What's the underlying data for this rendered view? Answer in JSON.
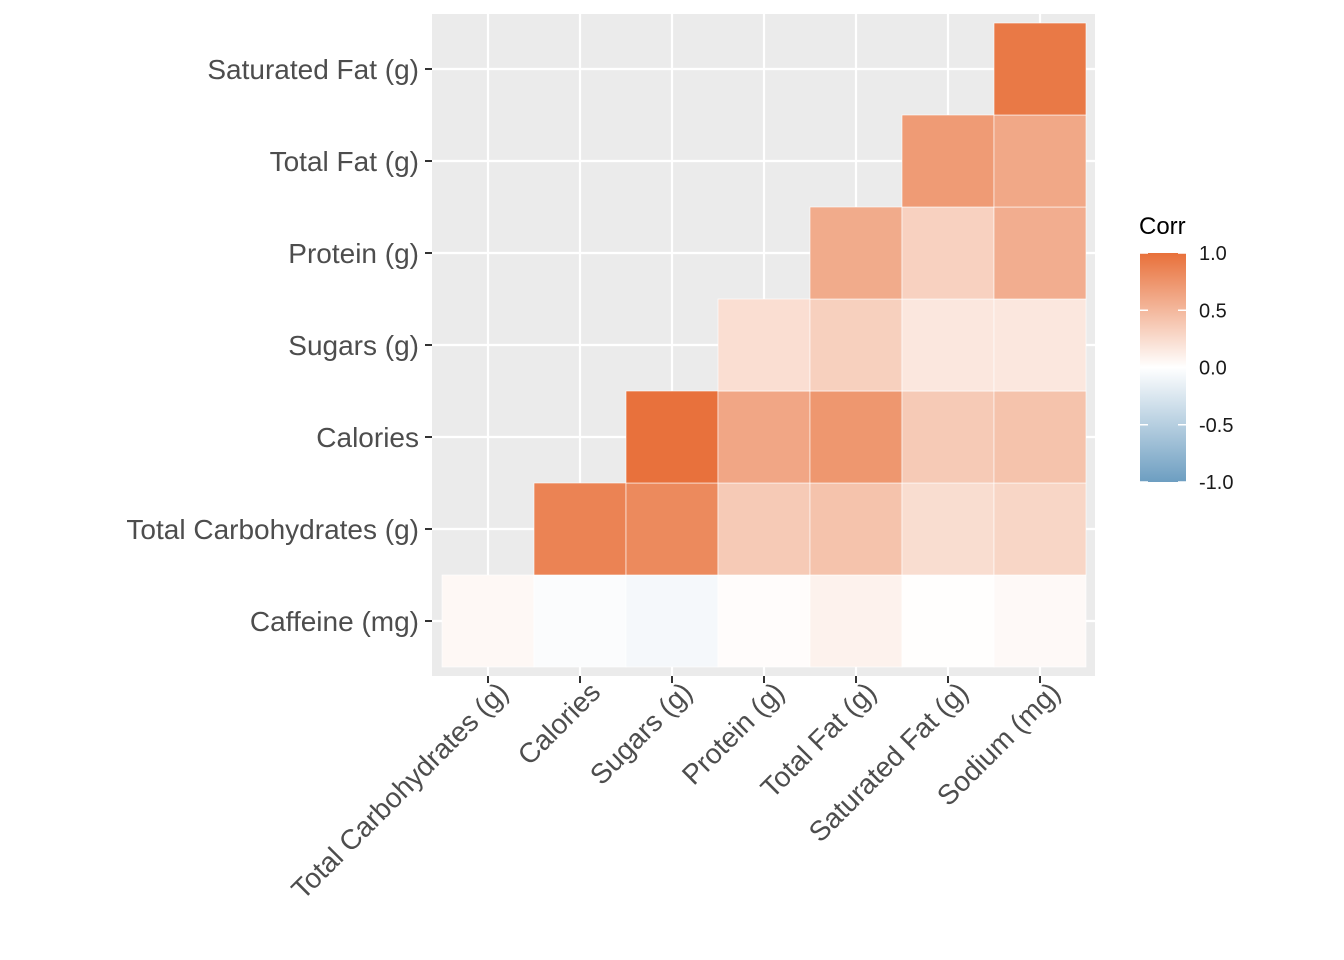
{
  "chart_data": {
    "type": "heatmap",
    "x_categories": [
      "Total Carbohydrates (g)",
      "Calories",
      "Sugars (g)",
      "Protein (g)",
      "Total Fat (g)",
      "Saturated Fat (g)",
      "Sodium (mg)"
    ],
    "y_categories": [
      "Caffeine (mg)",
      "Total Carbohydrates (g)",
      "Calories",
      "Sugars (g)",
      "Protein (g)",
      "Total Fat (g)",
      "Saturated Fat (g)"
    ],
    "cells": [
      {
        "x": "Total Carbohydrates (g)",
        "y": "Caffeine (mg)",
        "value": 0.05
      },
      {
        "x": "Calories",
        "y": "Caffeine (mg)",
        "value": -0.03
      },
      {
        "x": "Sugars (g)",
        "y": "Caffeine (mg)",
        "value": -0.07
      },
      {
        "x": "Protein (g)",
        "y": "Caffeine (mg)",
        "value": 0.02
      },
      {
        "x": "Total Fat (g)",
        "y": "Caffeine (mg)",
        "value": 0.09
      },
      {
        "x": "Saturated Fat (g)",
        "y": "Caffeine (mg)",
        "value": 0.01
      },
      {
        "x": "Sodium (mg)",
        "y": "Caffeine (mg)",
        "value": 0.04
      },
      {
        "x": "Calories",
        "y": "Total Carbohydrates (g)",
        "value": 0.87
      },
      {
        "x": "Sugars (g)",
        "y": "Total Carbohydrates (g)",
        "value": 0.82
      },
      {
        "x": "Protein (g)",
        "y": "Total Carbohydrates (g)",
        "value": 0.37
      },
      {
        "x": "Total Fat (g)",
        "y": "Total Carbohydrates (g)",
        "value": 0.42
      },
      {
        "x": "Saturated Fat (g)",
        "y": "Total Carbohydrates (g)",
        "value": 0.24
      },
      {
        "x": "Sodium (mg)",
        "y": "Total Carbohydrates (g)",
        "value": 0.29
      },
      {
        "x": "Sugars (g)",
        "y": "Calories",
        "value": 0.99
      },
      {
        "x": "Protein (g)",
        "y": "Calories",
        "value": 0.62
      },
      {
        "x": "Total Fat (g)",
        "y": "Calories",
        "value": 0.73
      },
      {
        "x": "Saturated Fat (g)",
        "y": "Calories",
        "value": 0.37
      },
      {
        "x": "Sodium (mg)",
        "y": "Calories",
        "value": 0.42
      },
      {
        "x": "Protein (g)",
        "y": "Sugars (g)",
        "value": 0.23
      },
      {
        "x": "Total Fat (g)",
        "y": "Sugars (g)",
        "value": 0.33
      },
      {
        "x": "Saturated Fat (g)",
        "y": "Sugars (g)",
        "value": 0.17
      },
      {
        "x": "Sodium (mg)",
        "y": "Sugars (g)",
        "value": 0.17
      },
      {
        "x": "Total Fat (g)",
        "y": "Protein (g)",
        "value": 0.59
      },
      {
        "x": "Saturated Fat (g)",
        "y": "Protein (g)",
        "value": 0.32
      },
      {
        "x": "Sodium (mg)",
        "y": "Protein (g)",
        "value": 0.57
      },
      {
        "x": "Saturated Fat (g)",
        "y": "Total Fat (g)",
        "value": 0.7
      },
      {
        "x": "Sodium (mg)",
        "y": "Total Fat (g)",
        "value": 0.61
      },
      {
        "x": "Sodium (mg)",
        "y": "Saturated Fat (g)",
        "value": 0.94
      }
    ],
    "legend": {
      "title": "Corr",
      "ticks": [
        "1.0",
        "0.5",
        "0.0",
        "-0.5",
        "-1.0"
      ],
      "tick_values": [
        1.0,
        0.5,
        0.0,
        -0.5,
        -1.0
      ],
      "range": [
        -1.0,
        1.0
      ],
      "position": "right"
    },
    "colors": {
      "high": "#E8703A",
      "mid": "#FFFFFF",
      "low": "#6D9EC1",
      "panel_background": "#EBEBEB",
      "grid": "#FFFFFF"
    },
    "grid": true,
    "title": "",
    "xlabel": "",
    "ylabel": ""
  }
}
